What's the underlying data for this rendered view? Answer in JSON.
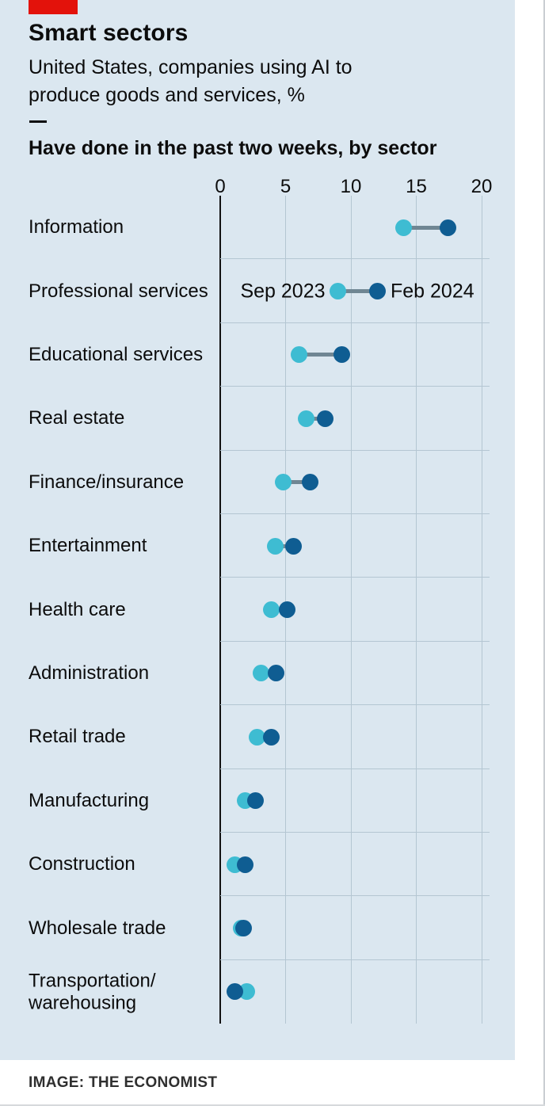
{
  "header": {
    "title": "Smart sectors",
    "subtitle": "United States, companies using AI to produce goods and services, %",
    "section_label": "Have done in the past two weeks, by sector"
  },
  "footer": {
    "credit": "IMAGE: THE ECONOMIST"
  },
  "colors": {
    "background": "#dbe7f0",
    "accent_red": "#e3120b",
    "series_sep": "#3ebcd2",
    "series_feb": "#0f5d92",
    "connector": "#6f8693",
    "gridline": "#b4c6d2",
    "axis": "#121212",
    "text": "#0c0c0c"
  },
  "chart_data": {
    "type": "dumbbell",
    "title": "Have done in the past two weeks, by sector",
    "subtitle": "United States, companies using AI to produce goods and services, %",
    "xlabel": "",
    "ylabel": "",
    "xlim": [
      0,
      20
    ],
    "x_ticks": [
      0,
      5,
      10,
      15,
      20
    ],
    "grid": true,
    "legend_position": "inline-second-row",
    "legend_row_index": 1,
    "categories": [
      "Information",
      "Professional services",
      "Educational services",
      "Real estate",
      "Finance/insurance",
      "Entertainment",
      "Health care",
      "Administration",
      "Retail trade",
      "Manufacturing",
      "Construction",
      "Wholesale trade",
      "Transportation/\nwarehousing"
    ],
    "series": [
      {
        "name": "Sep 2023",
        "color": "#3ebcd2",
        "values": [
          14,
          9,
          6,
          6.6,
          4.8,
          4.2,
          3.9,
          3.1,
          2.8,
          1.9,
          1.1,
          1.6,
          2.0
        ]
      },
      {
        "name": "Feb 2024",
        "color": "#0f5d92",
        "values": [
          17.4,
          12,
          9.3,
          8,
          6.9,
          5.6,
          5.1,
          4.3,
          3.9,
          2.7,
          1.9,
          1.8,
          1.1
        ]
      }
    ]
  }
}
